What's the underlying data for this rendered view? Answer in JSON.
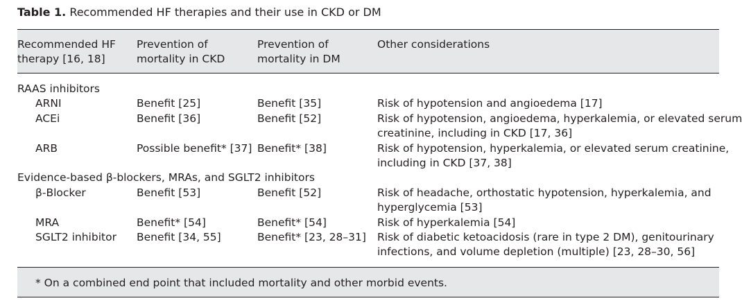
{
  "caption": {
    "label": "Table 1.",
    "text": "Recommended HF therapies and their use in CKD or DM"
  },
  "header": {
    "col1": [
      "Recommended HF",
      "therapy [16, 18]"
    ],
    "col2": [
      "Prevention of",
      "mortality in CKD"
    ],
    "col3": [
      "Prevention of",
      "mortality in DM"
    ],
    "col4": [
      "Other considerations"
    ]
  },
  "sections": [
    {
      "title": "RAAS inhibitors",
      "rows": [
        {
          "therapy": "ARNI",
          "ckd": "Benefit [25]",
          "dm": "Benefit [35]",
          "other": [
            "Risk of hypotension and angioedema [17]"
          ]
        },
        {
          "therapy": "ACEi",
          "ckd": "Benefit [36]",
          "dm": "Benefit [52]",
          "other": [
            "Risk of hypotension, angioedema, hyperkalemia, or elevated serum",
            "creatinine, including in CKD [17, 36]"
          ]
        },
        {
          "therapy": "ARB",
          "ckd": "Possible benefit* [37]",
          "dm": "Benefit* [38]",
          "other": [
            "Risk of hypotension, hyperkalemia, or elevated serum creatinine,",
            "including in CKD [37, 38]"
          ]
        }
      ]
    },
    {
      "title": "Evidence-based β-blockers, MRAs, and SGLT2 inhibitors",
      "rows": [
        {
          "therapy": "β-Blocker",
          "ckd": "Benefit [53]",
          "dm": "Benefit [52]",
          "other": [
            "Risk of headache, orthostatic hypotension, hyperkalemia, and",
            "hyperglycemia [53]"
          ]
        },
        {
          "therapy": "MRA",
          "ckd": "Benefit* [54]",
          "dm": "Benefit* [54]",
          "other": [
            "Risk of hyperkalemia [54]"
          ]
        },
        {
          "therapy": "SGLT2 inhibitor",
          "ckd": "Benefit [34, 55]",
          "dm": "Benefit* [23, 28–31]",
          "other": [
            "Risk of diabetic ketoacidosis (rare in type 2 DM), genitourinary",
            "infections, and volume depletion (multiple) [23, 28–30, 56]"
          ]
        }
      ]
    }
  ],
  "footnote": "* On a combined end point that included mortality and other morbid events."
}
